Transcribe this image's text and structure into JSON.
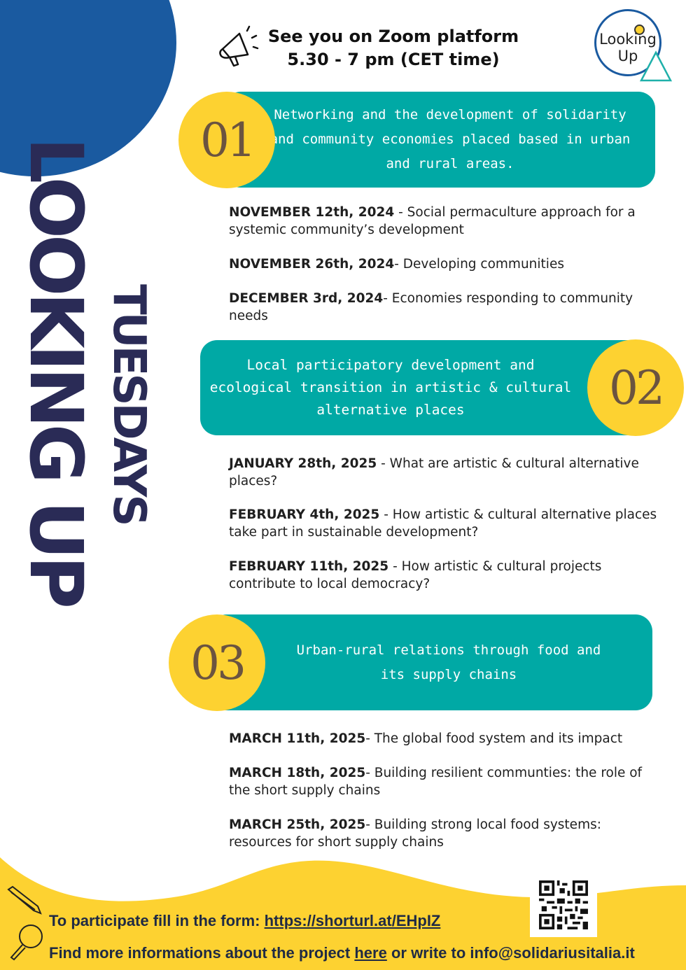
{
  "header": {
    "zoom_line1": "See you on Zoom platform",
    "zoom_line2": "5.30 - 7 pm  (CET time)",
    "logo_line1": "Looking",
    "logo_line2": "Up"
  },
  "title": {
    "vertical_main": "LOOKING UP",
    "vertical_sub": "TUESDAYS"
  },
  "colors": {
    "blue": "#1a5aa0",
    "teal": "#00a9a5",
    "yellow": "#fdd231",
    "navy": "#2a2b56",
    "numeral": "#6b5440"
  },
  "sections": [
    {
      "number": "01",
      "title": "Networking and the development of solidarity and community economies placed based in urban and rural areas.",
      "events": [
        {
          "date": "NOVEMBER 12th, 2024",
          "desc": "  - Social permaculture approach for a systemic  community’s development"
        },
        {
          "date": "NOVEMBER  26th, 2024",
          "desc": "- Developing communities"
        },
        {
          "date": "DECEMBER 3rd, 2024",
          "desc": "- Economies responding to community needs"
        }
      ]
    },
    {
      "number": "02",
      "title": "Local participatory development and ecological transition in artistic & cultural alternative places",
      "events": [
        {
          "date": "JANUARY 28th, 2025",
          "desc": " - What are artistic & cultural alternative places?"
        },
        {
          "date": "FEBRUARY 4th, 2025",
          "desc": " - How artistic & cultural alternative places take part in sustainable development?"
        },
        {
          "date": "FEBRUARY 11th, 2025",
          "desc": " - How artistic & cultural projects contribute to local democracy?"
        }
      ]
    },
    {
      "number": "03",
      "title": "Urban-rural relations through food and its supply chains",
      "events": [
        {
          "date": "MARCH 11th, 2025",
          "desc": "- The global food system and its impact"
        },
        {
          "date": "MARCH 18th, 2025",
          "desc": "- Building resilient communties: the role of the short supply chains"
        },
        {
          "date": "MARCH 25th, 2025",
          "desc": "- Building strong local food systems: resources for short supply chains"
        }
      ]
    }
  ],
  "footer": {
    "form_prefix": "To participate fill in the form: ",
    "form_link": "https://shorturl.at/EHpIZ",
    "more_prefix": "Find more informations about the project ",
    "more_link": "here",
    "more_suffix": " or write to info@solidariusitalia.it"
  }
}
